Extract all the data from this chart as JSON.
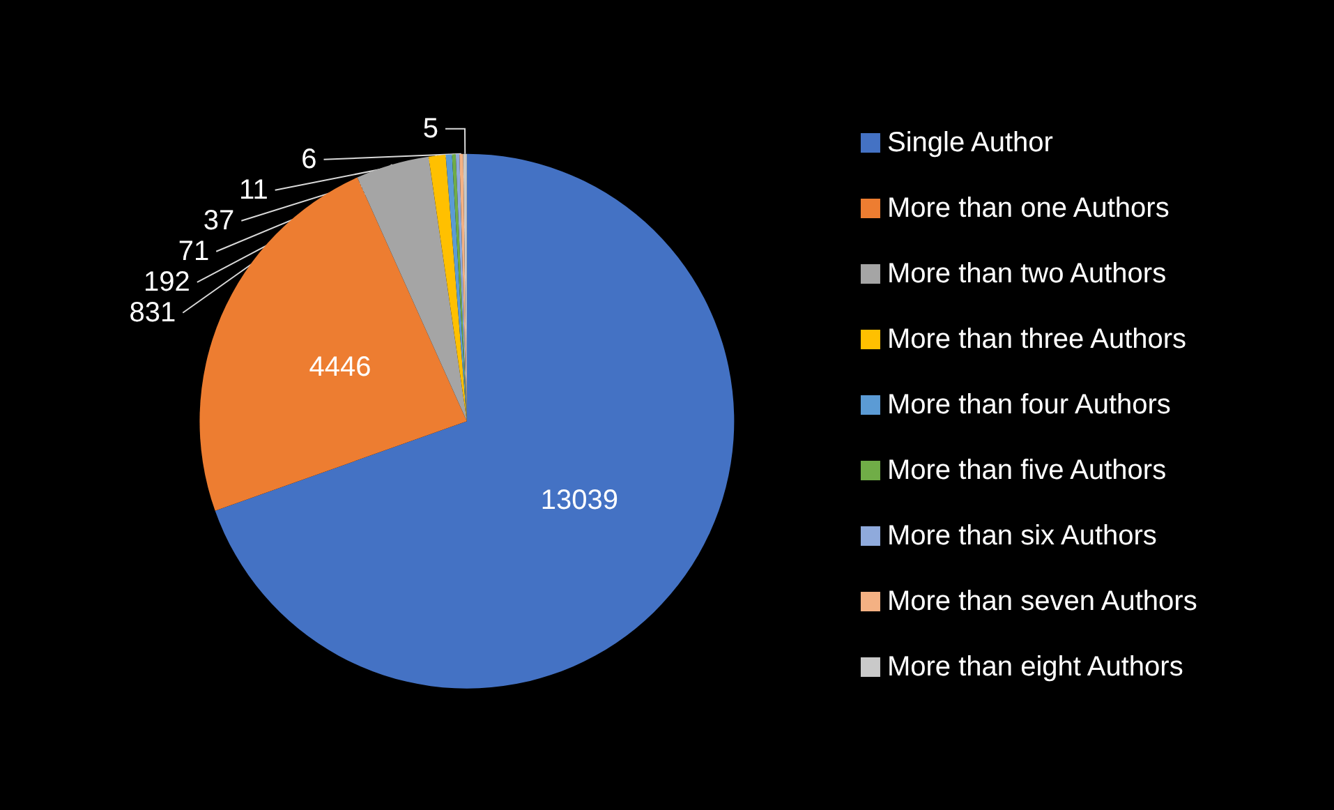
{
  "chart_data": {
    "type": "pie",
    "categories": [
      "Single Author",
      "More than one Authors",
      "More than two Authors",
      "More than three Authors",
      "More than four Authors",
      "More than five Authors",
      "More than six Authors",
      "More than seven Authors",
      "More than eight Authors"
    ],
    "values": [
      13039,
      4446,
      831,
      192,
      71,
      37,
      11,
      6,
      5
    ],
    "colors": [
      "#4472c4",
      "#ed7d31",
      "#a5a5a5",
      "#ffc000",
      "#5b9bd5",
      "#70ad47",
      "#8faadc",
      "#f4b183",
      "#c9c9c9"
    ],
    "data_labels": true,
    "legend": "right"
  }
}
